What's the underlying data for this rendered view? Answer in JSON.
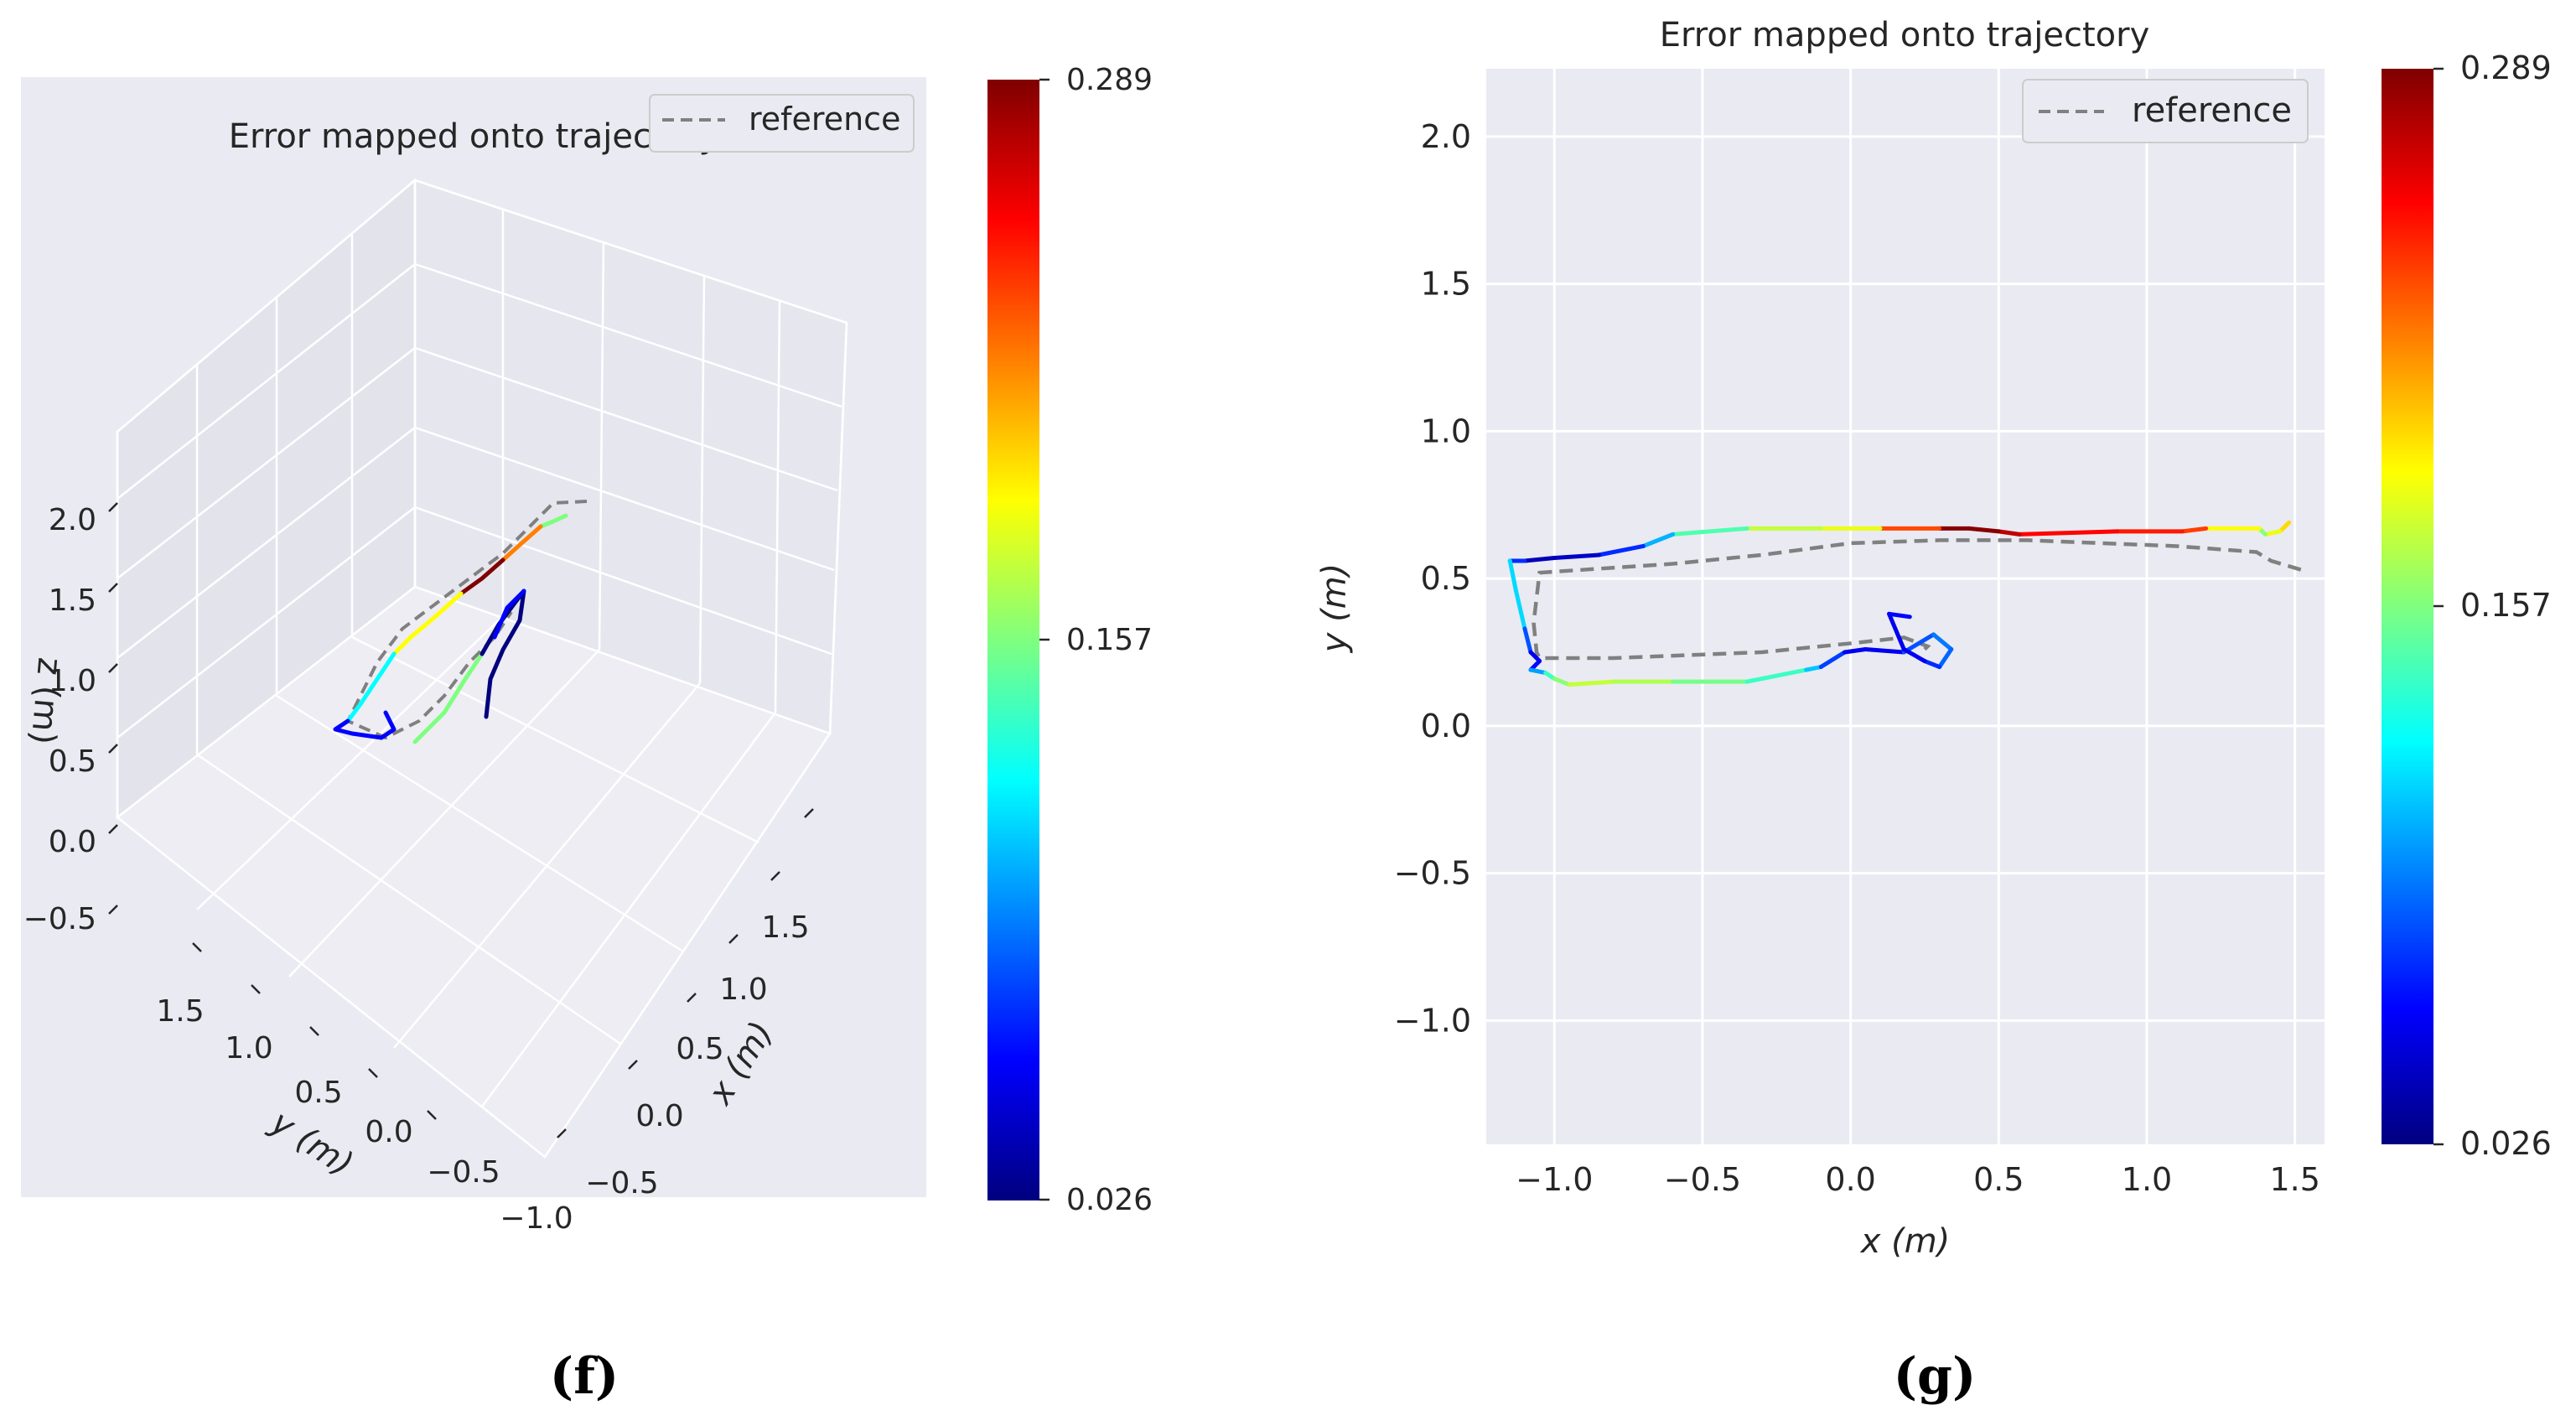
{
  "colors": {
    "axes_bg": "#eaeaf2",
    "grid": "#ffffff",
    "text": "#262626",
    "reference_line": "#808080",
    "colormap": [
      "#00007f",
      "#0000ff",
      "#007fff",
      "#00ffff",
      "#7fff7f",
      "#ffff00",
      "#ff7f00",
      "#ff0000",
      "#7f0000"
    ]
  },
  "chart_data": [
    {
      "id": "f",
      "type": "line3d",
      "panel_label": "(f)",
      "title": "Error mapped onto trajectory",
      "legend": {
        "label": "reference",
        "placement": "top-right"
      },
      "xlabel": "x (m)",
      "ylabel": "y (m)",
      "zlabel": "z (m)",
      "x_ticks": [
        "−1.0",
        "−0.5",
        "0.0",
        "0.5",
        "1.0",
        "1.5"
      ],
      "y_ticks": [
        "−0.5",
        "0.0",
        "0.5",
        "1.0",
        "1.5"
      ],
      "z_ticks": [
        "−0.5",
        "0.0",
        "0.5",
        "1.0",
        "1.5",
        "2.0"
      ],
      "colorbar": {
        "min": 0.026,
        "mid": 0.157,
        "max": 0.289,
        "tick_labels": [
          "0.289",
          "0.157",
          "0.026"
        ],
        "colormap": "jet"
      }
    },
    {
      "id": "g",
      "type": "line",
      "panel_label": "(g)",
      "title": "Error mapped onto trajectory",
      "legend": {
        "label": "reference",
        "placement": "top-right"
      },
      "xlabel": "x (m)",
      "ylabel": "y (m)",
      "xlim": [
        -1.23,
        1.6
      ],
      "ylim": [
        -1.42,
        2.23
      ],
      "x_ticks": [
        -1.0,
        -0.5,
        0.0,
        0.5,
        1.0,
        1.5
      ],
      "y_ticks": [
        -1.0,
        -0.5,
        0.0,
        0.5,
        1.0,
        1.5,
        2.0
      ],
      "x_tick_labels": [
        "−1.0",
        "−0.5",
        "0.0",
        "0.5",
        "1.0",
        "1.5"
      ],
      "y_tick_labels": [
        "−1.0",
        "−0.5",
        "0.0",
        "0.5",
        "1.0",
        "1.5",
        "2.0"
      ],
      "reference": {
        "x": [
          1.52,
          1.42,
          1.37,
          1.1,
          0.6,
          0.3,
          0.0,
          -0.3,
          -0.6,
          -0.9,
          -1.05,
          -1.07,
          -1.06,
          -1.05,
          -0.8,
          -0.3,
          0.0,
          0.18,
          0.26,
          0.25
        ],
        "y": [
          0.53,
          0.56,
          0.59,
          0.61,
          0.63,
          0.63,
          0.62,
          0.58,
          0.55,
          0.53,
          0.52,
          0.35,
          0.25,
          0.23,
          0.23,
          0.25,
          0.28,
          0.3,
          0.27,
          0.26
        ]
      },
      "estimate": {
        "x": [
          1.48,
          1.45,
          1.4,
          1.38,
          1.2,
          1.12,
          0.9,
          0.57,
          0.5,
          0.4,
          0.3,
          0.1,
          -0.1,
          -0.35,
          -0.6,
          -0.7,
          -0.85,
          -1.0,
          -1.1,
          -1.15,
          -1.13,
          -1.1,
          -1.08,
          -1.05,
          -1.08,
          -1.03,
          -1.0,
          -0.95,
          -0.8,
          -0.6,
          -0.35,
          -0.15,
          -0.1,
          -0.02,
          0.05,
          0.18,
          0.28,
          0.34,
          0.3,
          0.25,
          0.18,
          0.13,
          0.2
        ],
        "y": [
          0.69,
          0.66,
          0.65,
          0.67,
          0.67,
          0.66,
          0.66,
          0.65,
          0.66,
          0.67,
          0.67,
          0.67,
          0.67,
          0.67,
          0.65,
          0.61,
          0.58,
          0.57,
          0.56,
          0.56,
          0.46,
          0.33,
          0.25,
          0.22,
          0.19,
          0.18,
          0.16,
          0.14,
          0.15,
          0.15,
          0.15,
          0.19,
          0.2,
          0.25,
          0.26,
          0.25,
          0.31,
          0.26,
          0.2,
          0.22,
          0.26,
          0.38,
          0.37
        ],
        "error": [
          0.2,
          0.2,
          0.17,
          0.15,
          0.23,
          0.25,
          0.25,
          0.26,
          0.285,
          0.289,
          0.285,
          0.19,
          0.18,
          0.17,
          0.12,
          0.09,
          0.05,
          0.04,
          0.04,
          0.1,
          0.13,
          0.1,
          0.06,
          0.05,
          0.07,
          0.13,
          0.15,
          0.17,
          0.18,
          0.16,
          0.15,
          0.13,
          0.09,
          0.06,
          0.05,
          0.06,
          0.1,
          0.08,
          0.09,
          0.05,
          0.06,
          0.05,
          0.07
        ]
      },
      "colorbar": {
        "min": 0.026,
        "mid": 0.157,
        "max": 0.289,
        "tick_labels": [
          "0.289",
          "0.157",
          "0.026"
        ],
        "colormap": "jet"
      }
    }
  ]
}
